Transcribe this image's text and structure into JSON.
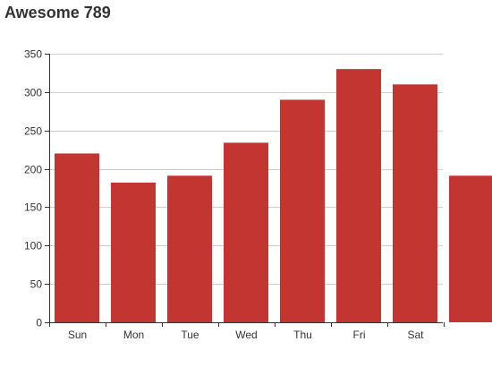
{
  "chart_data": {
    "type": "bar",
    "title": "Awesome 789",
    "categories": [
      "Sun",
      "Mon",
      "Tue",
      "Wed",
      "Thu",
      "Fri",
      "Sat",
      ""
    ],
    "series": [
      {
        "values": [
          220,
          182,
          191,
          234,
          290,
          330,
          310,
          191
        ],
        "color": "#c23531"
      }
    ],
    "ylim": [
      0,
      350
    ],
    "yticks": [
      0,
      50,
      100,
      150,
      200,
      250,
      300,
      350
    ],
    "grid": true,
    "legend": "none"
  },
  "colors": {
    "bar": "#c23531",
    "grid": "#cccccc",
    "axis": "#333333",
    "text": "#333333"
  }
}
